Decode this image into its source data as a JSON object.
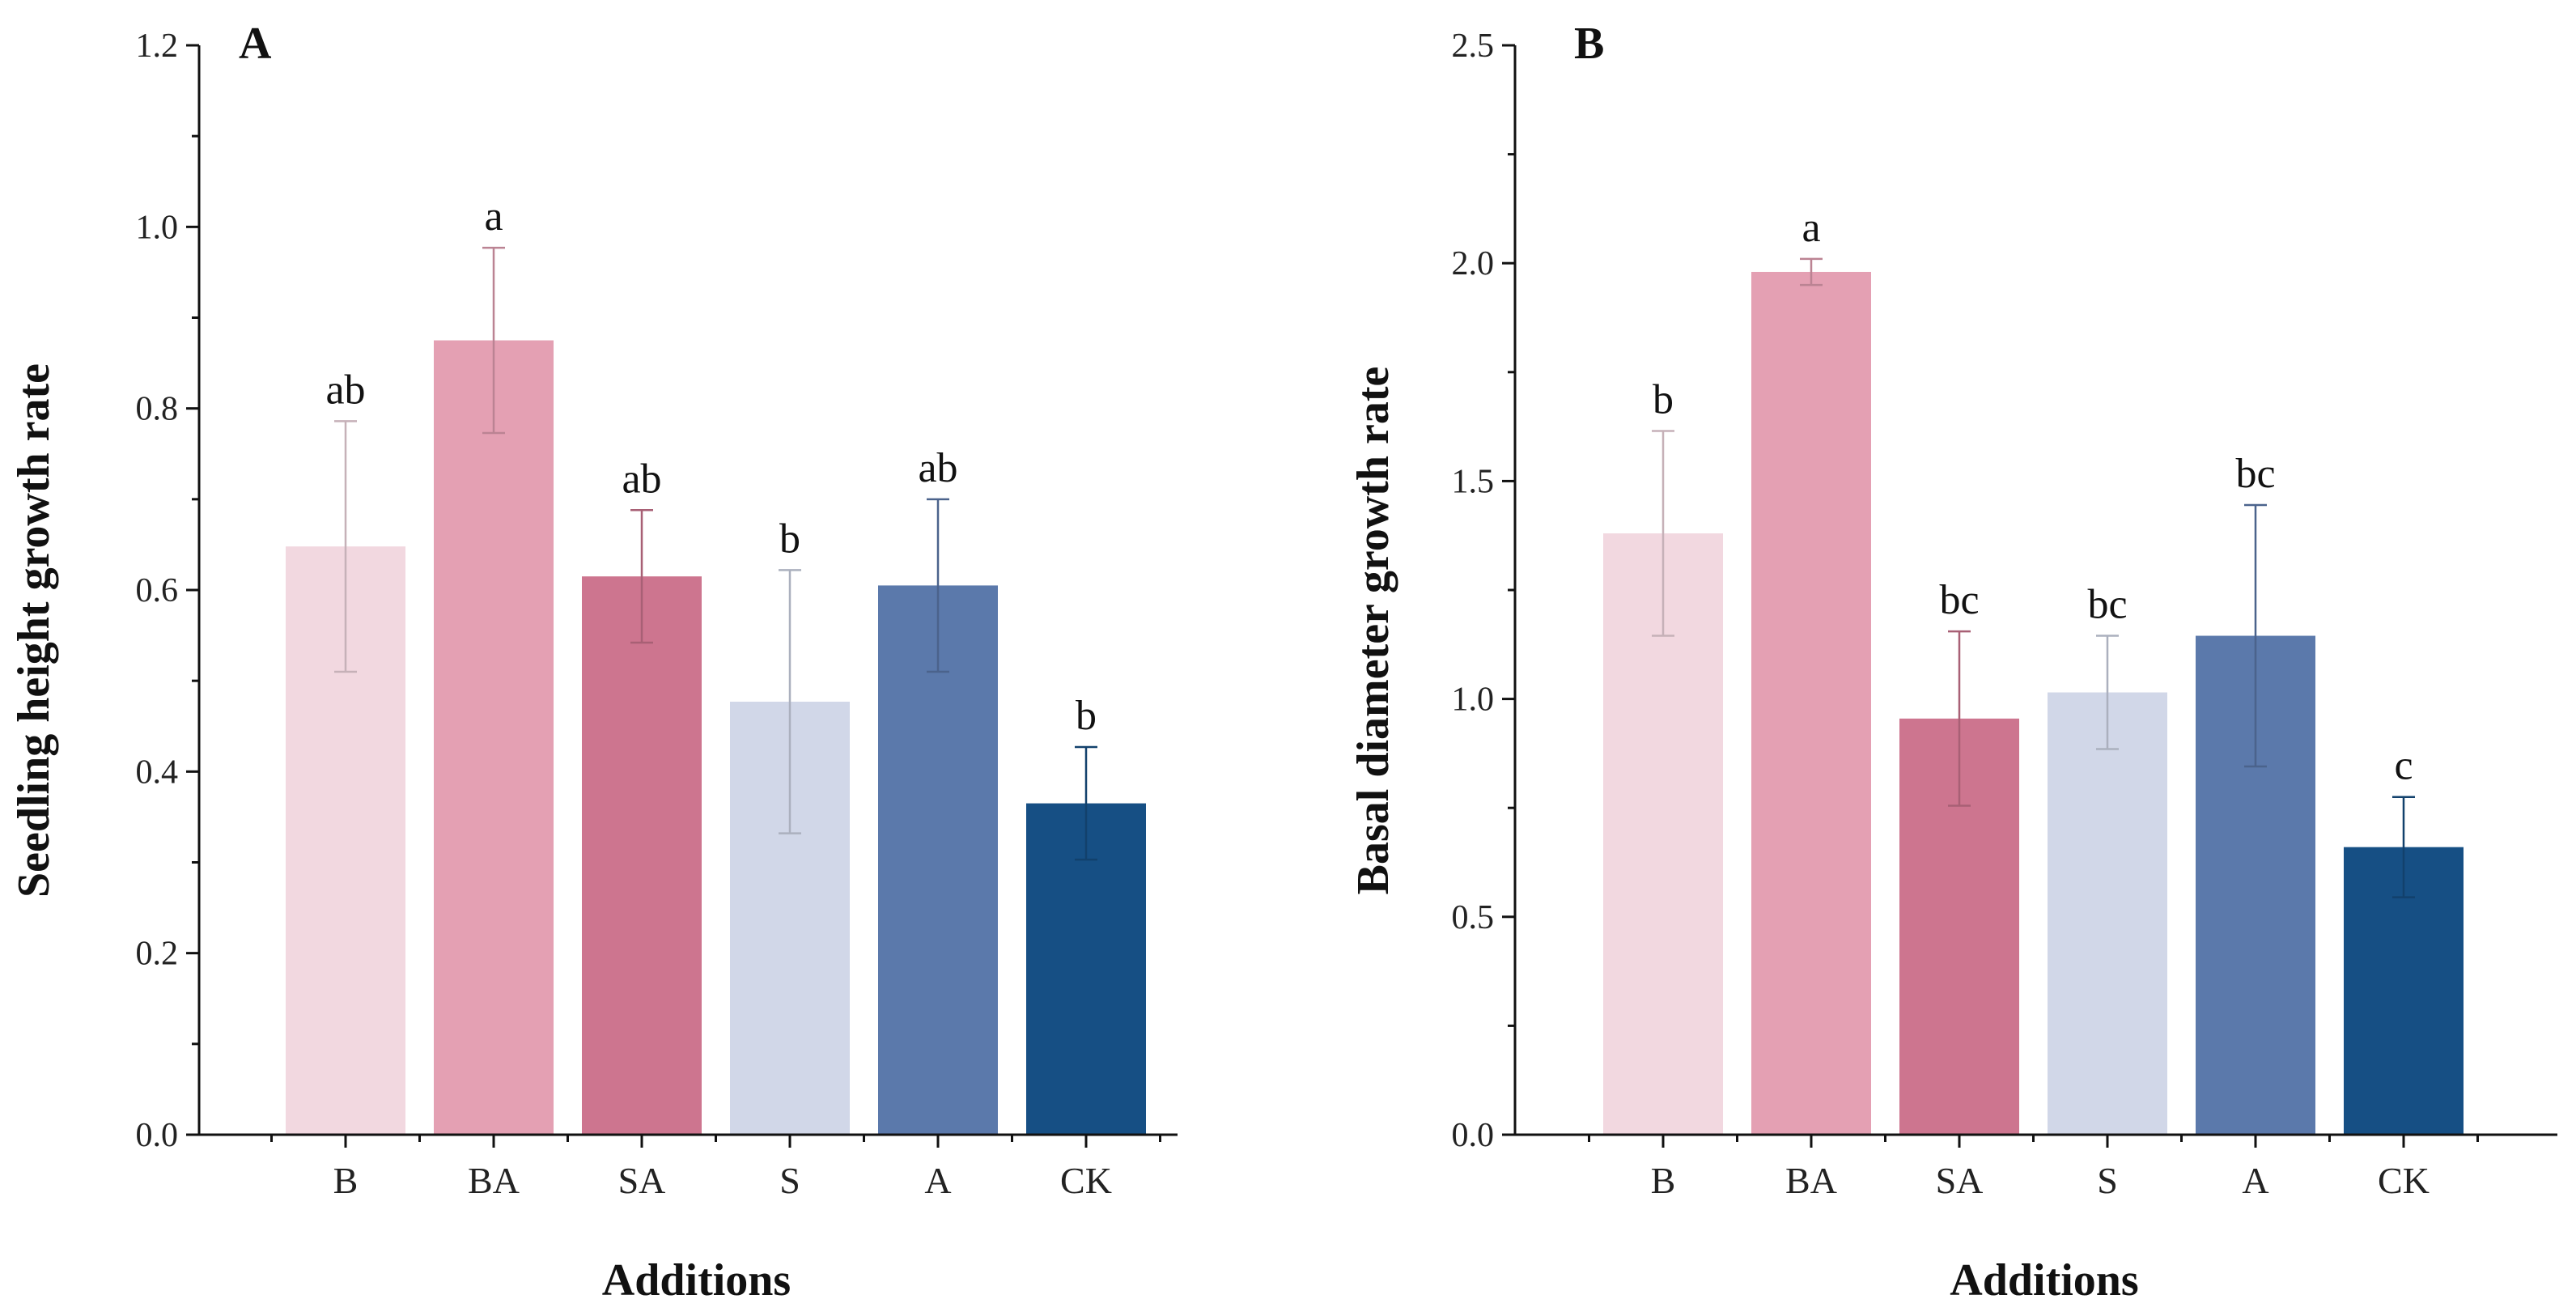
{
  "chart_data": [
    {
      "panel_label": "A",
      "type": "bar",
      "categories": [
        "B",
        "BA",
        "SA",
        "S",
        "A",
        "CK"
      ],
      "values": [
        0.648,
        0.875,
        0.615,
        0.477,
        0.605,
        0.365
      ],
      "errors": [
        0.138,
        0.102,
        0.073,
        0.145,
        0.095,
        0.062
      ],
      "sig_letters": [
        "ab",
        "a",
        "ab",
        "b",
        "ab",
        "b"
      ],
      "colors": [
        "#f2d8e0",
        "#e4a0b3",
        "#cd758f",
        "#d1d7e8",
        "#5b79ab",
        "#164f84"
      ],
      "xlabel": "Additions",
      "ylabel": "Seedling height growth rate",
      "ylim": [
        0,
        1.2
      ],
      "yticks": [
        0.0,
        0.2,
        0.4,
        0.6,
        0.8,
        1.0,
        1.2
      ],
      "ytick_labels": [
        "0.0",
        "0.2",
        "0.4",
        "0.6",
        "0.8",
        "1.0",
        "1.2"
      ]
    },
    {
      "panel_label": "B",
      "type": "bar",
      "categories": [
        "B",
        "BA",
        "SA",
        "S",
        "A",
        "CK"
      ],
      "values": [
        1.38,
        1.98,
        0.955,
        1.015,
        1.145,
        0.66
      ],
      "errors": [
        0.235,
        0.03,
        0.2,
        0.13,
        0.3,
        0.115
      ],
      "sig_letters": [
        "b",
        "a",
        "bc",
        "bc",
        "bc",
        "c"
      ],
      "colors": [
        "#f2d8e0",
        "#e4a0b3",
        "#cd758f",
        "#d1d7e8",
        "#5b79ab",
        "#164f84"
      ],
      "xlabel": "Additions",
      "ylabel": "Basal diameter growth rate",
      "ylim": [
        0,
        2.5
      ],
      "yticks": [
        0.0,
        0.5,
        1.0,
        1.5,
        2.0,
        2.5
      ],
      "ytick_labels": [
        "0.0",
        "0.5",
        "1.0",
        "1.5",
        "2.0",
        "2.5"
      ]
    }
  ]
}
